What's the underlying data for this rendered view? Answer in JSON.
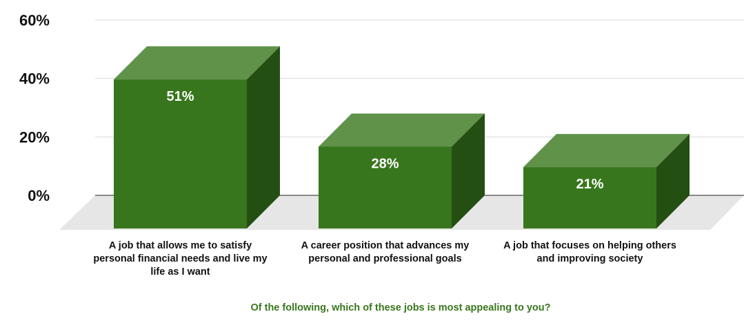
{
  "chart_data": {
    "type": "bar",
    "style": "3d-column",
    "categories": [
      [
        "A job that allows me to satisfy",
        "personal financial needs and live my",
        "life as I want"
      ],
      [
        "A career position that advances my",
        "personal and professional goals"
      ],
      [
        "A job that focuses on helping others",
        "and improving society"
      ]
    ],
    "values": [
      51,
      28,
      21
    ],
    "value_labels": [
      "51%",
      "28%",
      "21%"
    ],
    "xlabel": "Of the following, which of these jobs is most appealing to you?",
    "ylabel": "",
    "ylim": [
      0,
      60
    ],
    "yticks": [
      0,
      20,
      40,
      60
    ],
    "ytick_labels": [
      "0%",
      "20%",
      "40%",
      "60%"
    ],
    "grid": true,
    "colors": {
      "bar_front": "#38761d",
      "bar_top": "#60924a",
      "bar_side": "#244f13",
      "floor": "#e6e6e6",
      "gridline": "#d9d9d9",
      "axis_title": "#38761d"
    }
  }
}
